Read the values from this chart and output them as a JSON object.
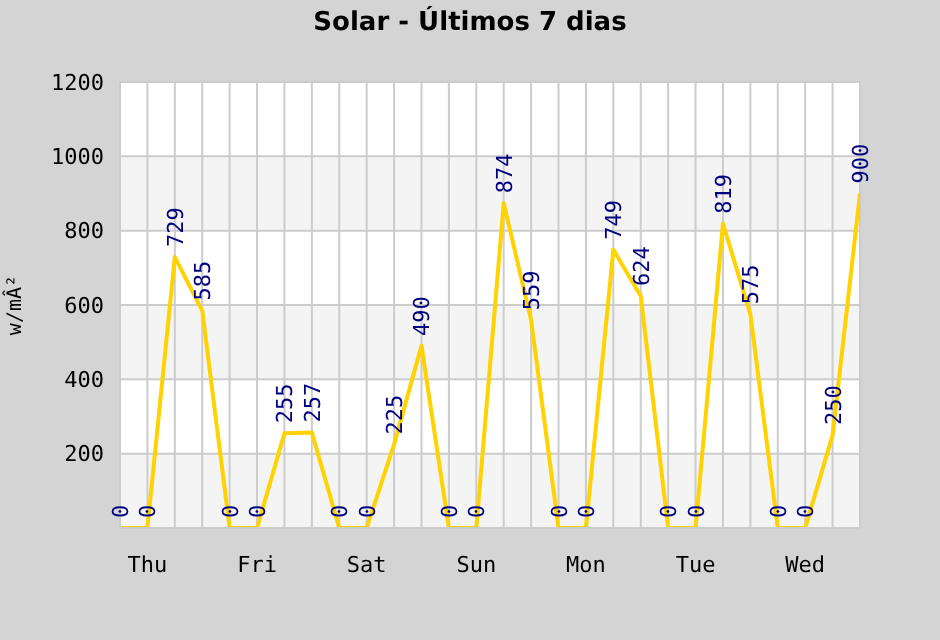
{
  "chart_data": {
    "type": "line",
    "title": "Solar - Últimos 7 dias",
    "ylabel": "w/mÂ²",
    "categories": [
      null,
      "Thu",
      null,
      null,
      null,
      "Fri",
      null,
      null,
      null,
      "Sat",
      null,
      null,
      null,
      "Sun",
      null,
      null,
      null,
      "Mon",
      null,
      null,
      null,
      "Tue",
      null,
      null,
      null,
      "Wed",
      null,
      null
    ],
    "series": [
      {
        "color": "#ffd200",
        "values": [
          0,
          0,
          729,
          585,
          0,
          0,
          255,
          257,
          0,
          0,
          225,
          490,
          0,
          0,
          874,
          559,
          0,
          0,
          749,
          624,
          0,
          0,
          819,
          575,
          0,
          0,
          250,
          900
        ]
      }
    ],
    "ylim": [
      0,
      1200
    ],
    "yticks": [
      {
        "value": 0,
        "label": null
      },
      200,
      400,
      600,
      800,
      1000,
      1200
    ],
    "grid": true,
    "data_labels": true,
    "marker": "none",
    "legend": false
  }
}
